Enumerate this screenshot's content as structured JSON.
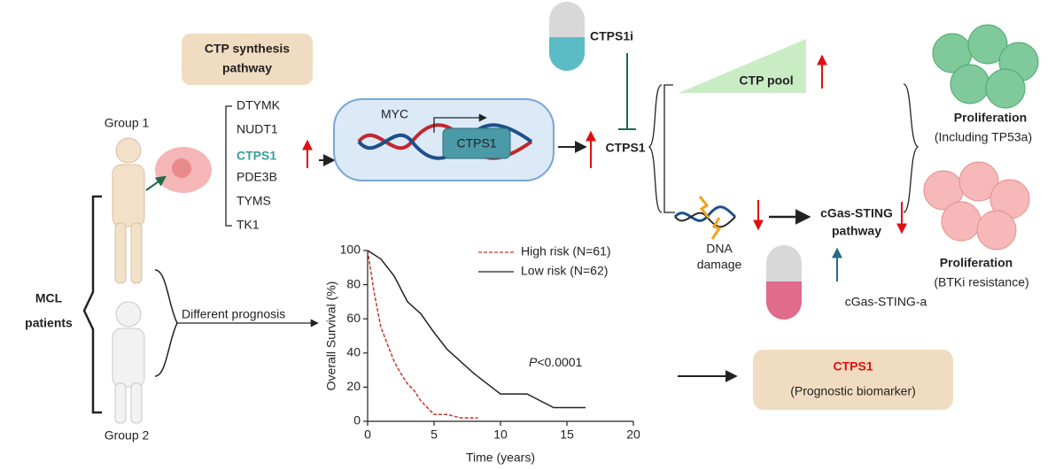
{
  "pathway_box": [
    "CTP synthesis",
    "pathway"
  ],
  "group1": "Group 1",
  "group2": "Group 2",
  "genes": [
    "DTYMK",
    "NUDT1",
    "CTPS1",
    "PDE3B",
    "TYMS",
    "TK1"
  ],
  "cell": {
    "myc": "MYC",
    "gene": "CTPS1"
  },
  "inhibitor": "CTPS1i",
  "target": "CTPS1",
  "ctp_pool": "CTP pool",
  "dna_damage": [
    "DNA",
    "damage"
  ],
  "sting_pathway": [
    "cGas-STING",
    "pathway"
  ],
  "sting_agonist": "cGas-STING-a",
  "outcome1": {
    "title": "Proliferation",
    "note": "(Including TP53a)"
  },
  "outcome2": {
    "title": "Proliferation",
    "note": "(BTKi resistance)"
  },
  "patients": [
    "MCL",
    "patients"
  ],
  "prognosis": "Different prognosis",
  "biomarker": {
    "title": "CTPS1",
    "note": "(Prognostic biomarker)"
  },
  "chart_data": {
    "type": "line",
    "x_label": "Time (years)",
    "y_label": "Overall Survival (%)",
    "annotation": {
      "italic": "P",
      "text": "<0.0001"
    },
    "xlim": [
      0,
      20
    ],
    "xticks": [
      0,
      5,
      10,
      15,
      20
    ],
    "ylim": [
      0,
      100
    ],
    "yticks": [
      0,
      20,
      40,
      60,
      80,
      100
    ],
    "series": [
      {
        "name": "High risk (N=61)",
        "color": "#c0392b",
        "x": [
          0,
          0.5,
          1,
          1.5,
          2,
          2.5,
          3,
          3.5,
          4,
          4.5,
          5,
          6,
          7,
          8.3
        ],
        "values": [
          100,
          75,
          55,
          45,
          35,
          28,
          22,
          18,
          12,
          8,
          4,
          4,
          2,
          2
        ]
      },
      {
        "name": "Low risk (N=62)",
        "color": "#222222",
        "x": [
          0,
          1,
          2,
          3,
          4,
          5,
          6,
          7,
          8,
          9,
          10,
          11,
          12,
          14,
          16.4
        ],
        "values": [
          100,
          95,
          85,
          70,
          63,
          52,
          42,
          35,
          28,
          22,
          16,
          16,
          16,
          8,
          8
        ]
      }
    ]
  }
}
